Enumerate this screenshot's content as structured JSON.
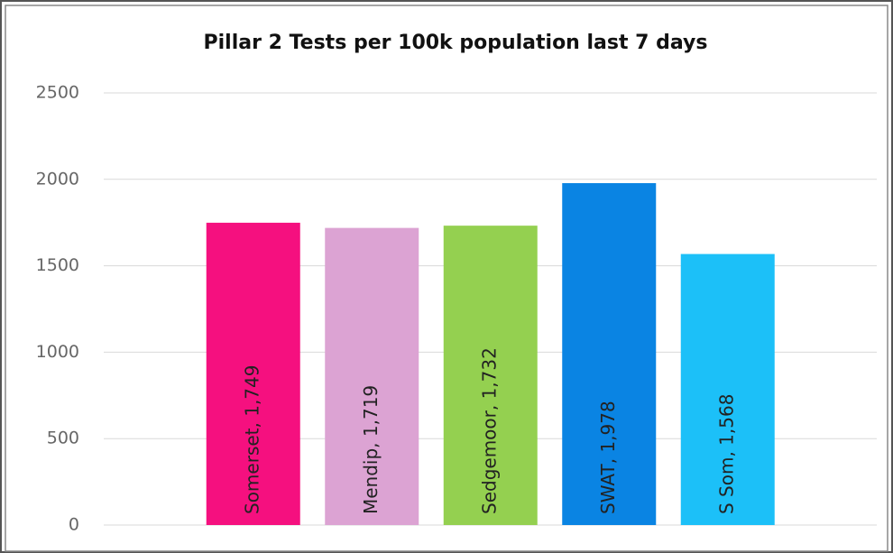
{
  "chart_data": {
    "type": "bar",
    "title": "Pillar 2 Tests per 100k population last 7 days",
    "categories": [
      "Somerset",
      "Mendip",
      "Sedgemoor",
      "SWAT",
      "S Som"
    ],
    "values": [
      1749,
      1719,
      1732,
      1978,
      1568
    ],
    "value_labels": [
      "Somerset, 1,749",
      "Mendip, 1,719",
      "Sedgemoor, 1,732",
      "SWAT, 1,978",
      "S Som, 1,568"
    ],
    "colors": [
      "#f5107f",
      "#dca3d3",
      "#94d050",
      "#0a84e3",
      "#1cc0f8"
    ],
    "ylim": [
      0,
      2500
    ],
    "yticks": [
      0,
      500,
      1000,
      1500,
      2000,
      2500
    ],
    "grid": true
  }
}
